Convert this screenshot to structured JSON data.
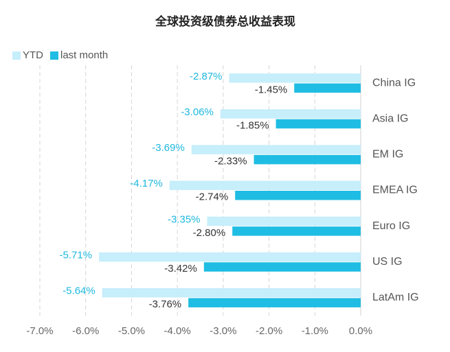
{
  "chart_data": {
    "type": "bar",
    "orientation": "horizontal",
    "title": "全球投资级债券总收益表现",
    "categories": [
      "China IG",
      "Asia IG",
      "EM IG",
      "EMEA IG",
      "Euro IG",
      "US IG",
      "LatAm IG"
    ],
    "series": [
      {
        "name": "YTD",
        "values": [
          -2.87,
          -3.06,
          -3.69,
          -4.17,
          -3.35,
          -5.71,
          -5.64
        ],
        "labels": [
          "-2.87%",
          "-3.06%",
          "-3.69%",
          "-4.17%",
          "-3.35%",
          "-5.71%",
          "-5.64%"
        ],
        "color": "#c6eefb",
        "label_color": "#1eb8de"
      },
      {
        "name": "last month",
        "values": [
          -1.45,
          -1.85,
          -2.33,
          -2.74,
          -2.8,
          -3.42,
          -3.76
        ],
        "labels": [
          "-1.45%",
          "-1.85%",
          "-2.33%",
          "-2.74%",
          "-2.80%",
          "-3.42%",
          "-3.76%"
        ],
        "color": "#1fbde3",
        "label_color": "#333333"
      }
    ],
    "xlim": [
      -7.0,
      0.0
    ],
    "xticks": [
      -7.0,
      -6.0,
      -5.0,
      -4.0,
      -3.0,
      -2.0,
      -1.0,
      0.0
    ],
    "xtick_labels": [
      "-7.0%",
      "-6.0%",
      "-5.0%",
      "-4.0%",
      "-3.0%",
      "-2.0%",
      "-1.0%",
      "0.0%"
    ],
    "grid": "vertical-dashed",
    "legend_position": "top-left"
  }
}
